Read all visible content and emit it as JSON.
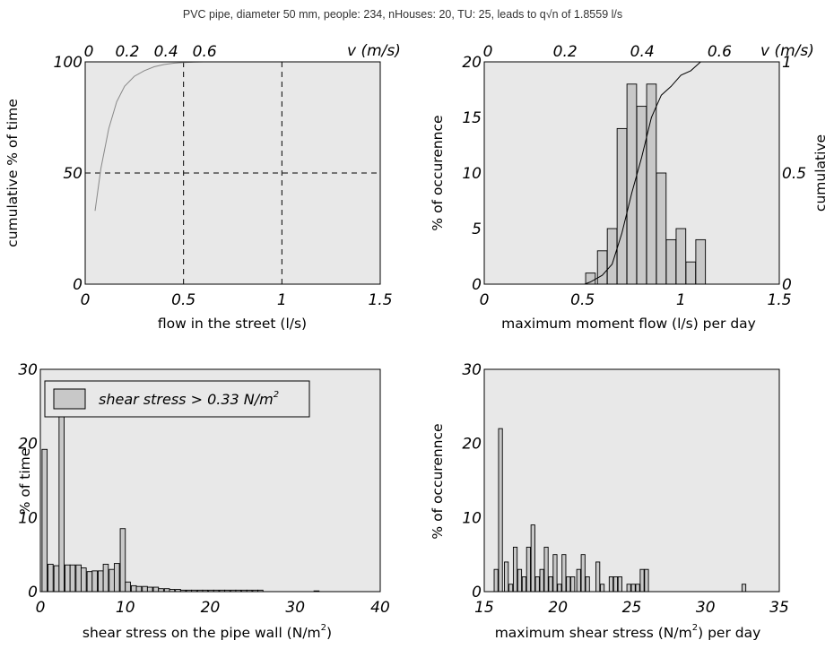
{
  "figure_title": "PVC pipe, diameter 50 mm, people: 234, nHouses: 20, TU: 25, leads to q√n of 1.8559 l/s",
  "colors": {
    "plot_background": "#e8e8e8",
    "bar_fill": "#c8c8c8",
    "cdf_line_gray": "#888888",
    "cdf_line_black": "#000000"
  },
  "chart_data": [
    {
      "id": "flow-cdf",
      "type": "line",
      "xlabel": "flow in the street (l/s)",
      "ylabel": "cumulative % of time",
      "top_axis_label": "v (m/s)",
      "xlim": [
        0,
        1.5
      ],
      "ylim": [
        0,
        100
      ],
      "xticks": [
        "0",
        "0.5",
        "1",
        "1.5"
      ],
      "yticks": [
        "0",
        "50",
        "100"
      ],
      "top_ticks": [
        "0",
        "0.2",
        "0.4",
        "0.6"
      ],
      "top_tick_positions_flow": [
        0,
        0.196,
        0.393,
        0.589
      ],
      "grid": true,
      "grid_dashed": true,
      "series": [
        {
          "x": [
            0.05,
            0.08,
            0.12,
            0.16,
            0.2,
            0.25,
            0.3,
            0.35,
            0.4,
            0.45,
            0.5,
            0.55,
            0.6,
            0.7
          ],
          "y": [
            33,
            52,
            70,
            82,
            89,
            93.5,
            96,
            97.8,
            98.8,
            99.4,
            99.7,
            99.9,
            100,
            100
          ]
        }
      ]
    },
    {
      "id": "max-flow-hist",
      "type": "bar",
      "xlabel": "maximum moment flow (l/s) per day",
      "ylabel": "% of occurennce",
      "right_axis_label": "cumulative",
      "top_axis_label": "v (m/s)",
      "xlim": [
        0,
        1.5
      ],
      "ylim": [
        0,
        20
      ],
      "right_ylim": [
        0,
        1
      ],
      "xticks": [
        "0",
        "0.5",
        "1",
        "1.5"
      ],
      "yticks": [
        "0",
        "5",
        "10",
        "15",
        "20"
      ],
      "right_ticks": [
        "0",
        "0.5",
        "1"
      ],
      "top_ticks": [
        "0",
        "0.2",
        "0.4",
        "0.6"
      ],
      "top_tick_positions_flow": [
        0,
        0.393,
        0.785,
        1.178
      ],
      "grid": false,
      "bar_width": 0.049,
      "bars": {
        "x": [
          0.54,
          0.6,
          0.65,
          0.7,
          0.75,
          0.8,
          0.85,
          0.9,
          0.95,
          1.0,
          1.05,
          1.1
        ],
        "values": [
          1,
          3,
          5,
          14,
          18,
          16,
          18,
          10,
          4,
          5,
          2,
          4
        ]
      },
      "cumulative": {
        "x": [
          0.51,
          0.54,
          0.6,
          0.65,
          0.7,
          0.75,
          0.8,
          0.85,
          0.9,
          0.95,
          1.0,
          1.05,
          1.1,
          1.15
        ],
        "y": [
          0,
          0.01,
          0.04,
          0.09,
          0.23,
          0.41,
          0.57,
          0.75,
          0.85,
          0.89,
          0.94,
          0.96,
          1.0,
          1.0
        ]
      }
    },
    {
      "id": "shear-hist",
      "type": "bar",
      "xlabel": "shear stress on the pipe wall (N/m",
      "xlabel_sup": "2",
      "xlabel_tail": ")",
      "ylabel": "% of time",
      "xlim": [
        0,
        40
      ],
      "ylim": [
        0,
        30
      ],
      "xticks": [
        "0",
        "10",
        "20",
        "30",
        "40"
      ],
      "yticks": [
        "0",
        "10",
        "20",
        "30"
      ],
      "grid": false,
      "legend": {
        "label": "shear stress > 0.33 N/m",
        "label_sup": "2",
        "placement": "top-left"
      },
      "bar_width": 0.6,
      "bars": {
        "x": [
          0.5,
          1.2,
          1.9,
          2.5,
          3.2,
          3.8,
          4.5,
          5.1,
          5.8,
          6.4,
          7.1,
          7.7,
          8.4,
          9.0,
          9.7,
          10.3,
          11.0,
          11.6,
          12.3,
          12.9,
          13.6,
          14.2,
          14.9,
          15.5,
          16.2,
          16.8,
          17.5,
          18.1,
          18.8,
          19.4,
          20.1,
          20.7,
          21.4,
          22.0,
          22.7,
          23.3,
          24.0,
          24.6,
          25.3,
          25.9,
          32.5
        ],
        "values": [
          19.2,
          3.7,
          3.5,
          24,
          3.6,
          3.6,
          3.6,
          3.2,
          2.7,
          2.8,
          2.8,
          3.7,
          3.0,
          3.8,
          8.5,
          1.3,
          0.8,
          0.7,
          0.7,
          0.6,
          0.6,
          0.4,
          0.4,
          0.3,
          0.3,
          0.2,
          0.2,
          0.2,
          0.2,
          0.2,
          0.2,
          0.2,
          0.2,
          0.2,
          0.2,
          0.2,
          0.2,
          0.2,
          0.2,
          0.2,
          0.1
        ]
      }
    },
    {
      "id": "max-shear-hist",
      "type": "bar",
      "xlabel": "maximum shear stress (N/m",
      "xlabel_sup": "2",
      "xlabel_tail": ") per day",
      "ylabel": "% of occurennce",
      "xlim": [
        15,
        35
      ],
      "ylim": [
        0,
        30
      ],
      "xticks": [
        "15",
        "20",
        "25",
        "30",
        "35"
      ],
      "yticks": [
        "0",
        "10",
        "20",
        "30"
      ],
      "grid": false,
      "bar_width": 0.26,
      "bars": {
        "x": [
          15.8,
          16.1,
          16.5,
          16.8,
          17.1,
          17.4,
          17.7,
          18.0,
          18.3,
          18.6,
          18.9,
          19.2,
          19.5,
          19.8,
          20.1,
          20.4,
          20.7,
          21.0,
          21.4,
          21.7,
          22.0,
          22.7,
          23.0,
          23.6,
          23.9,
          24.2,
          24.8,
          25.1,
          25.4,
          25.7,
          26.0,
          32.6
        ],
        "values": [
          3,
          22,
          4,
          1,
          6,
          3,
          2,
          6,
          9,
          2,
          3,
          6,
          2,
          5,
          1,
          5,
          2,
          2,
          3,
          5,
          2,
          4,
          1,
          2,
          2,
          2,
          1,
          1,
          1,
          3,
          3,
          1
        ]
      }
    }
  ]
}
